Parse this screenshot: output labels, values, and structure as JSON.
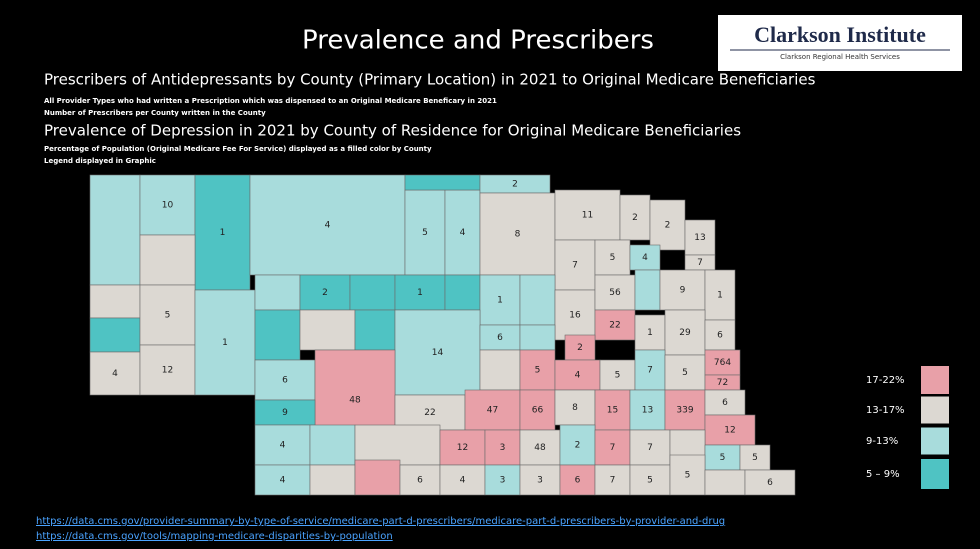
{
  "header": {
    "title": "Prevalence and Prescribers",
    "logo_title": "Clarkson Institute",
    "logo_subtitle": "Clarkson Regional Health Services"
  },
  "section1": {
    "heading": "Prescribers of Antidepressants by County (Primary Location) in 2021 to Original Medicare Beneficiaries",
    "notes": [
      "All Provider Types who had written a Prescription which was dispensed to an Original Medicare Beneficary in 2021",
      "Number of Prescribers per County written in the County"
    ]
  },
  "section2": {
    "heading": "Prevalence of Depression in 2021 by County of Residence for Original Medicare Beneficiaries",
    "notes": [
      "Percentage of Population (Original Medicare Fee For Service) displayed as a filled color by County",
      "Legend displayed in Graphic"
    ]
  },
  "map": {
    "counties": [
      {
        "label": null,
        "color": "#a8dcdc"
      },
      {
        "label": 10,
        "color": "#a8dcdc"
      },
      {
        "label": 1,
        "color": "#4fc3c3"
      },
      {
        "label": 4,
        "color": "#a8dcdc"
      },
      {
        "label": null,
        "color": "#dcd8d2"
      },
      {
        "label": 5,
        "color": "#a8dcdc"
      },
      {
        "label": 4,
        "color": "#a8dcdc"
      },
      {
        "label": null,
        "color": "#4fc3c3"
      },
      {
        "label": 2,
        "color": "#a8dcdc"
      },
      {
        "label": 8,
        "color": "#dcd8d2"
      },
      {
        "label": 11,
        "color": "#dcd8d2"
      },
      {
        "label": 2,
        "color": "#dcd8d2"
      },
      {
        "label": 2,
        "color": "#dcd8d2"
      },
      {
        "label": 13,
        "color": "#dcd8d2"
      },
      {
        "label": 7,
        "color": "#dcd8d2"
      },
      {
        "label": 5,
        "color": "#dcd8d2"
      },
      {
        "label": 4,
        "color": "#a8dcdc"
      },
      {
        "label": 7,
        "color": "#dcd8d2"
      },
      {
        "label": null,
        "color": "#dcd8d2"
      },
      {
        "label": null,
        "color": "#4fc3c3"
      },
      {
        "label": 4,
        "color": "#dcd8d2"
      },
      {
        "label": 5,
        "color": "#dcd8d2"
      },
      {
        "label": 12,
        "color": "#dcd8d2"
      },
      {
        "label": 1,
        "color": "#a8dcdc"
      },
      {
        "label": null,
        "color": "#a8dcdc"
      },
      {
        "label": 2,
        "color": "#4fc3c3"
      },
      {
        "label": null,
        "color": "#4fc3c3"
      },
      {
        "label": 1,
        "color": "#4fc3c3"
      },
      {
        "label": null,
        "color": "#4fc3c3"
      },
      {
        "label": 1,
        "color": "#a8dcdc"
      },
      {
        "label": null,
        "color": "#a8dcdc"
      },
      {
        "label": 16,
        "color": "#dcd8d2"
      },
      {
        "label": 56,
        "color": "#dcd8d2"
      },
      {
        "label": null,
        "color": "#a8dcdc"
      },
      {
        "label": 9,
        "color": "#dcd8d2"
      },
      {
        "label": 1,
        "color": "#dcd8d2"
      },
      {
        "label": null,
        "color": "#4fc3c3"
      },
      {
        "label": null,
        "color": "#dcd8d2"
      },
      {
        "label": null,
        "color": "#4fc3c3"
      },
      {
        "label": 14,
        "color": "#a8dcdc"
      },
      {
        "label": 6,
        "color": "#a8dcdc"
      },
      {
        "label": null,
        "color": "#a8dcdc"
      },
      {
        "label": 22,
        "color": "#e8a0a8"
      },
      {
        "label": 1,
        "color": "#dcd8d2"
      },
      {
        "label": 29,
        "color": "#dcd8d2"
      },
      {
        "label": 6,
        "color": "#dcd8d2"
      },
      {
        "label": 6,
        "color": "#a8dcdc"
      },
      {
        "label": 48,
        "color": "#e8a0a8"
      },
      {
        "label": null,
        "color": "#dcd8d2"
      },
      {
        "label": 5,
        "color": "#e8a0a8"
      },
      {
        "label": 2,
        "color": "#e8a0a8"
      },
      {
        "label": 4,
        "color": "#e8a0a8"
      },
      {
        "label": 5,
        "color": "#dcd8d2"
      },
      {
        "label": 7,
        "color": "#a8dcdc"
      },
      {
        "label": 5,
        "color": "#dcd8d2"
      },
      {
        "label": 764,
        "color": "#e8a0a8"
      },
      {
        "label": 72,
        "color": "#e8a0a8"
      },
      {
        "label": 9,
        "color": "#4fc3c3"
      },
      {
        "label": 22,
        "color": "#dcd8d2"
      },
      {
        "label": 47,
        "color": "#e8a0a8"
      },
      {
        "label": 66,
        "color": "#e8a0a8"
      },
      {
        "label": 8,
        "color": "#dcd8d2"
      },
      {
        "label": 15,
        "color": "#e8a0a8"
      },
      {
        "label": 13,
        "color": "#a8dcdc"
      },
      {
        "label": 339,
        "color": "#e8a0a8"
      },
      {
        "label": 6,
        "color": "#dcd8d2"
      },
      {
        "label": 12,
        "color": "#e8a0a8"
      },
      {
        "label": 4,
        "color": "#a8dcdc"
      },
      {
        "label": null,
        "color": "#a8dcdc"
      },
      {
        "label": null,
        "color": "#dcd8d2"
      },
      {
        "label": 12,
        "color": "#e8a0a8"
      },
      {
        "label": 3,
        "color": "#e8a0a8"
      },
      {
        "label": 48,
        "color": "#dcd8d2"
      },
      {
        "label": 2,
        "color": "#a8dcdc"
      },
      {
        "label": 7,
        "color": "#e8a0a8"
      },
      {
        "label": 7,
        "color": "#dcd8d2"
      },
      {
        "label": null,
        "color": "#dcd8d2"
      },
      {
        "label": 5,
        "color": "#a8dcdc"
      },
      {
        "label": 5,
        "color": "#dcd8d2"
      },
      {
        "label": 4,
        "color": "#a8dcdc"
      },
      {
        "label": null,
        "color": "#dcd8d2"
      },
      {
        "label": null,
        "color": "#e8a0a8"
      },
      {
        "label": 6,
        "color": "#dcd8d2"
      },
      {
        "label": 4,
        "color": "#dcd8d2"
      },
      {
        "label": 3,
        "color": "#a8dcdc"
      },
      {
        "label": 3,
        "color": "#dcd8d2"
      },
      {
        "label": 6,
        "color": "#e8a0a8"
      },
      {
        "label": 7,
        "color": "#dcd8d2"
      },
      {
        "label": 5,
        "color": "#dcd8d2"
      },
      {
        "label": 5,
        "color": "#dcd8d2"
      },
      {
        "label": null,
        "color": "#dcd8d2"
      },
      {
        "label": 6,
        "color": "#dcd8d2"
      }
    ]
  },
  "legend": [
    {
      "label": "17-22%",
      "color": "#e8a0a8"
    },
    {
      "label": "13-17%",
      "color": "#dcd8d2"
    },
    {
      "label": "9-13%",
      "color": "#a8dcdc"
    },
    {
      "label": "5 – 9%",
      "color": "#4fc3c3"
    }
  ],
  "links": [
    "https://data.cms.gov/provider-summary-by-type-of-service/medicare-part-d-prescribers/medicare-part-d-prescribers-by-provider-and-drug",
    "https://data.cms.gov/tools/mapping-medicare-disparities-by-population"
  ]
}
